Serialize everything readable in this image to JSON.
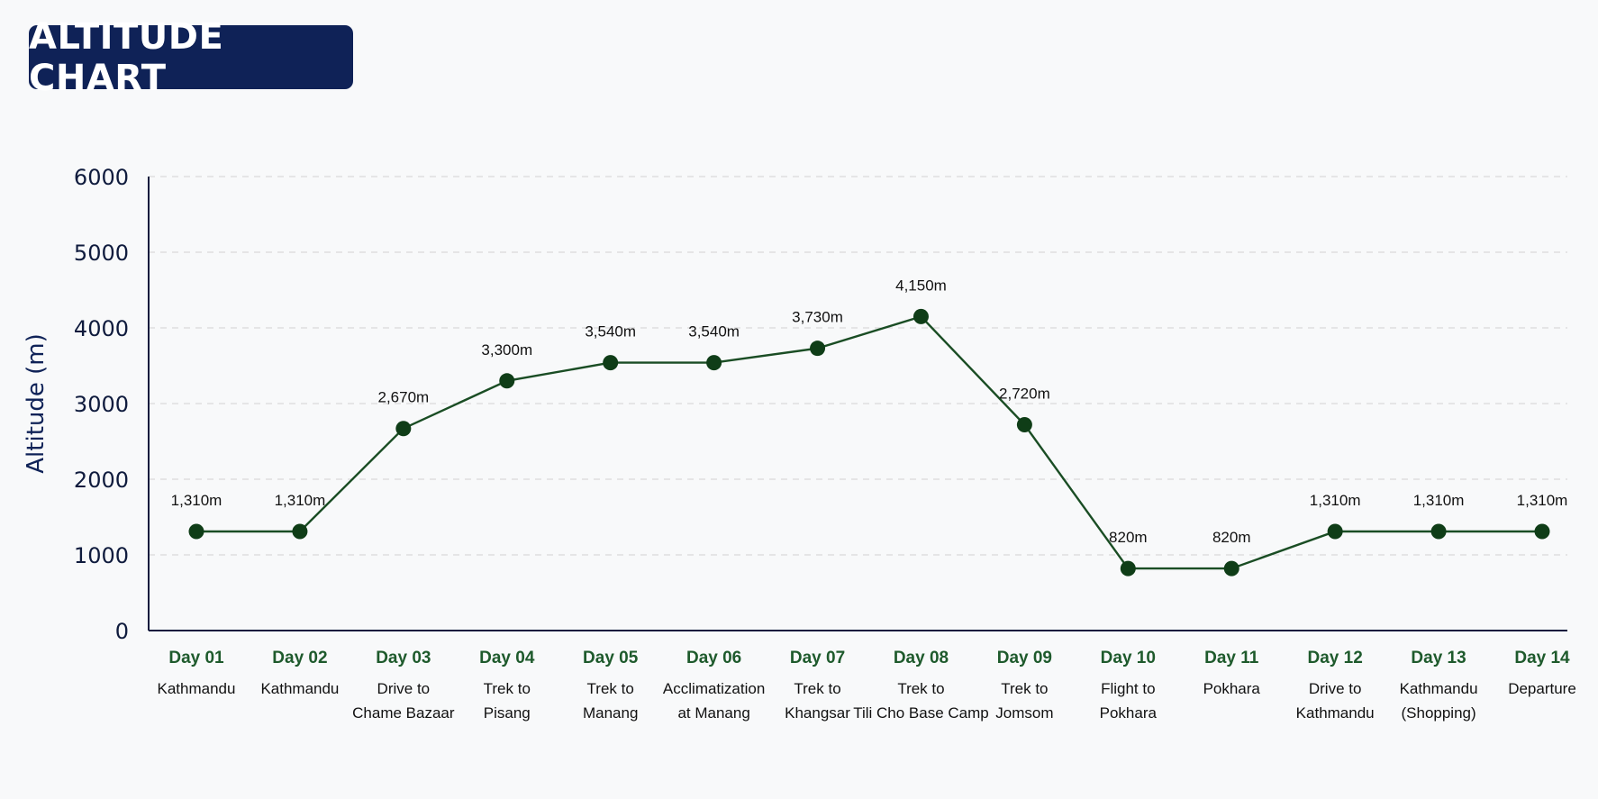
{
  "title": "ALTITUDE CHART",
  "colors": {
    "title_bg": "#0f2257",
    "line": "#1a4d24",
    "marker": "#0f3d17",
    "day_label": "#1e5a2c",
    "grid": "#d9d9d9"
  },
  "chart_data": {
    "type": "line",
    "ylabel": "Altitude (m)",
    "ylim": [
      0,
      6000
    ],
    "yticks": [
      0,
      1000,
      2000,
      3000,
      4000,
      5000,
      6000
    ],
    "grid": true,
    "categories": [
      {
        "day": "Day 01",
        "desc": [
          "Kathmandu"
        ]
      },
      {
        "day": "Day 02",
        "desc": [
          "Kathmandu"
        ]
      },
      {
        "day": "Day 03",
        "desc": [
          "Drive to",
          "Chame Bazaar"
        ]
      },
      {
        "day": "Day 04",
        "desc": [
          "Trek to",
          "Pisang"
        ]
      },
      {
        "day": "Day 05",
        "desc": [
          "Trek to",
          "Manang"
        ]
      },
      {
        "day": "Day 06",
        "desc": [
          "Acclimatization",
          "at Manang"
        ]
      },
      {
        "day": "Day 07",
        "desc": [
          "Trek to",
          "Khangsar"
        ]
      },
      {
        "day": "Day 08",
        "desc": [
          "Trek to",
          "Tili Cho Base Camp"
        ]
      },
      {
        "day": "Day 09",
        "desc": [
          "Trek to",
          "Jomsom"
        ]
      },
      {
        "day": "Day 10",
        "desc": [
          "Flight to",
          "Pokhara"
        ]
      },
      {
        "day": "Day 11",
        "desc": [
          "Pokhara"
        ]
      },
      {
        "day": "Day 12",
        "desc": [
          "Drive to",
          "Kathmandu"
        ]
      },
      {
        "day": "Day 13",
        "desc": [
          "Kathmandu",
          "(Shopping)"
        ]
      },
      {
        "day": "Day 14",
        "desc": [
          "Departure"
        ]
      }
    ],
    "values": [
      1310,
      1310,
      2670,
      3300,
      3540,
      3540,
      3730,
      4150,
      2720,
      820,
      820,
      1310,
      1310,
      1310
    ],
    "labels": [
      "1,310m",
      "1,310m",
      "2,670m",
      "3,300m",
      "3,540m",
      "3,540m",
      "3,730m",
      "4,150m",
      "2,720m",
      "820m",
      "820m",
      "1,310m",
      "1,310m",
      "1,310m"
    ]
  }
}
